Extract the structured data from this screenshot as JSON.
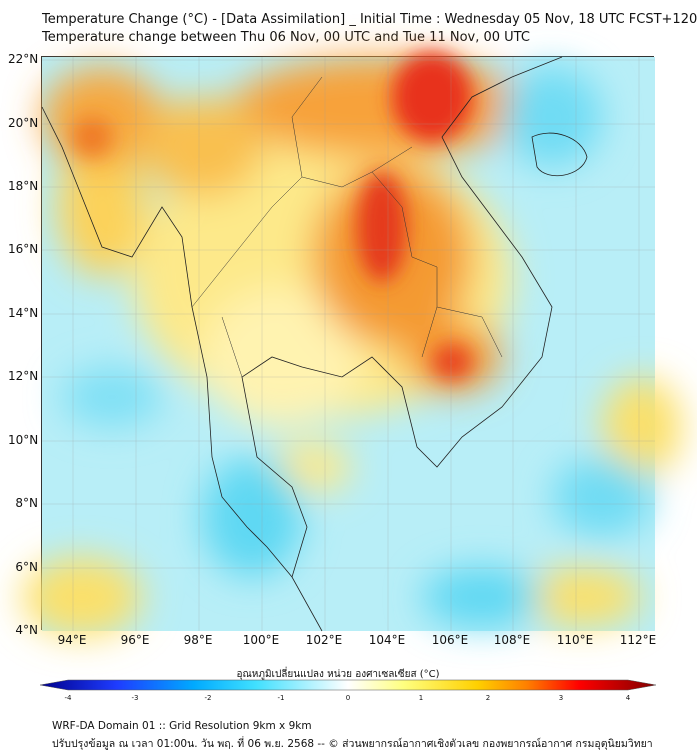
{
  "title_line1": "Temperature Change (°C) - [Data Assimilation] _ Initial Time : Wednesday 05 Nov, 18 UTC FCST+120",
  "title_line2": "Temperature change between Thu 06 Nov, 00 UTC and Tue 11 Nov, 00 UTC",
  "lat_labels": [
    "22°N",
    "20°N",
    "18°N",
    "16°N",
    "14°N",
    "12°N",
    "10°N",
    "8°N",
    "6°N",
    "4°N"
  ],
  "lon_labels": [
    "94°E",
    "96°E",
    "98°E",
    "100°E",
    "102°E",
    "104°E",
    "106°E",
    "108°E",
    "110°E",
    "112°E"
  ],
  "colorbar": {
    "title": "อุณหภูมิเปลี่ยนแปลง หน่วย องศาเซลเซียส (°C)",
    "ticks": [
      "-4",
      "-3",
      "-2",
      "-1",
      "0",
      "1",
      "2",
      "3",
      "4"
    ],
    "min": -4,
    "max": 4,
    "colors": [
      "#00008b",
      "#1e3cff",
      "#00aaff",
      "#40e0ff",
      "#ffffff",
      "#ffff80",
      "#ffd000",
      "#ff8000",
      "#ff0000",
      "#800000"
    ]
  },
  "footer_line1": "WRF-DA Domain 01 :: Grid Resolution 9km x 9km",
  "footer_line2": "ปรับปรุงข้อมูล ณ เวลา 01:00น. วัน พฤ. ที่ 06 พ.ย. 2568 -- © ส่วนพยากรณ์อากาศเชิงตัวเลข กองพยากรณ์อากาศ กรมอุตุนิยมวิทยา"
}
